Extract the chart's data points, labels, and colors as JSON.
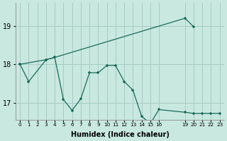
{
  "background_color": "#c8e8e0",
  "grid_color": "#a8ccc4",
  "line_color": "#1a6b5a",
  "xlim": [
    -0.5,
    23.5
  ],
  "ylim": [
    16.55,
    19.6
  ],
  "yticks": [
    17,
    18,
    19
  ],
  "ytick_labels": [
    "17",
    "18",
    "19"
  ],
  "xtick_positions": [
    0,
    1,
    2,
    3,
    4,
    5,
    6,
    7,
    8,
    9,
    10,
    11,
    12,
    13,
    14,
    15,
    16,
    19,
    20,
    21,
    22,
    23
  ],
  "xtick_labels": [
    "0",
    "1",
    "2",
    "3",
    "4",
    "5",
    "6",
    "7",
    "8",
    "9",
    "10",
    "11",
    "12",
    "13",
    "14",
    "15",
    "16",
    "19",
    "20",
    "21",
    "22",
    "23"
  ],
  "xlabel": "Humidex (Indice chaleur)",
  "series_a_x": [
    0,
    1,
    3,
    4,
    5,
    6,
    7,
    8,
    9,
    10,
    11,
    12,
    13,
    14,
    15,
    16,
    19,
    20,
    21,
    22,
    23
  ],
  "series_a_y": [
    18.0,
    17.55,
    18.12,
    18.18,
    17.08,
    16.8,
    17.1,
    17.78,
    17.78,
    17.97,
    17.97,
    17.55,
    17.33,
    16.65,
    16.45,
    16.82,
    16.75,
    16.72,
    16.72,
    16.72,
    16.72
  ],
  "series_b_x": [
    0,
    3,
    4,
    19,
    20
  ],
  "series_b_y": [
    18.0,
    18.12,
    18.18,
    19.2,
    18.98
  ]
}
